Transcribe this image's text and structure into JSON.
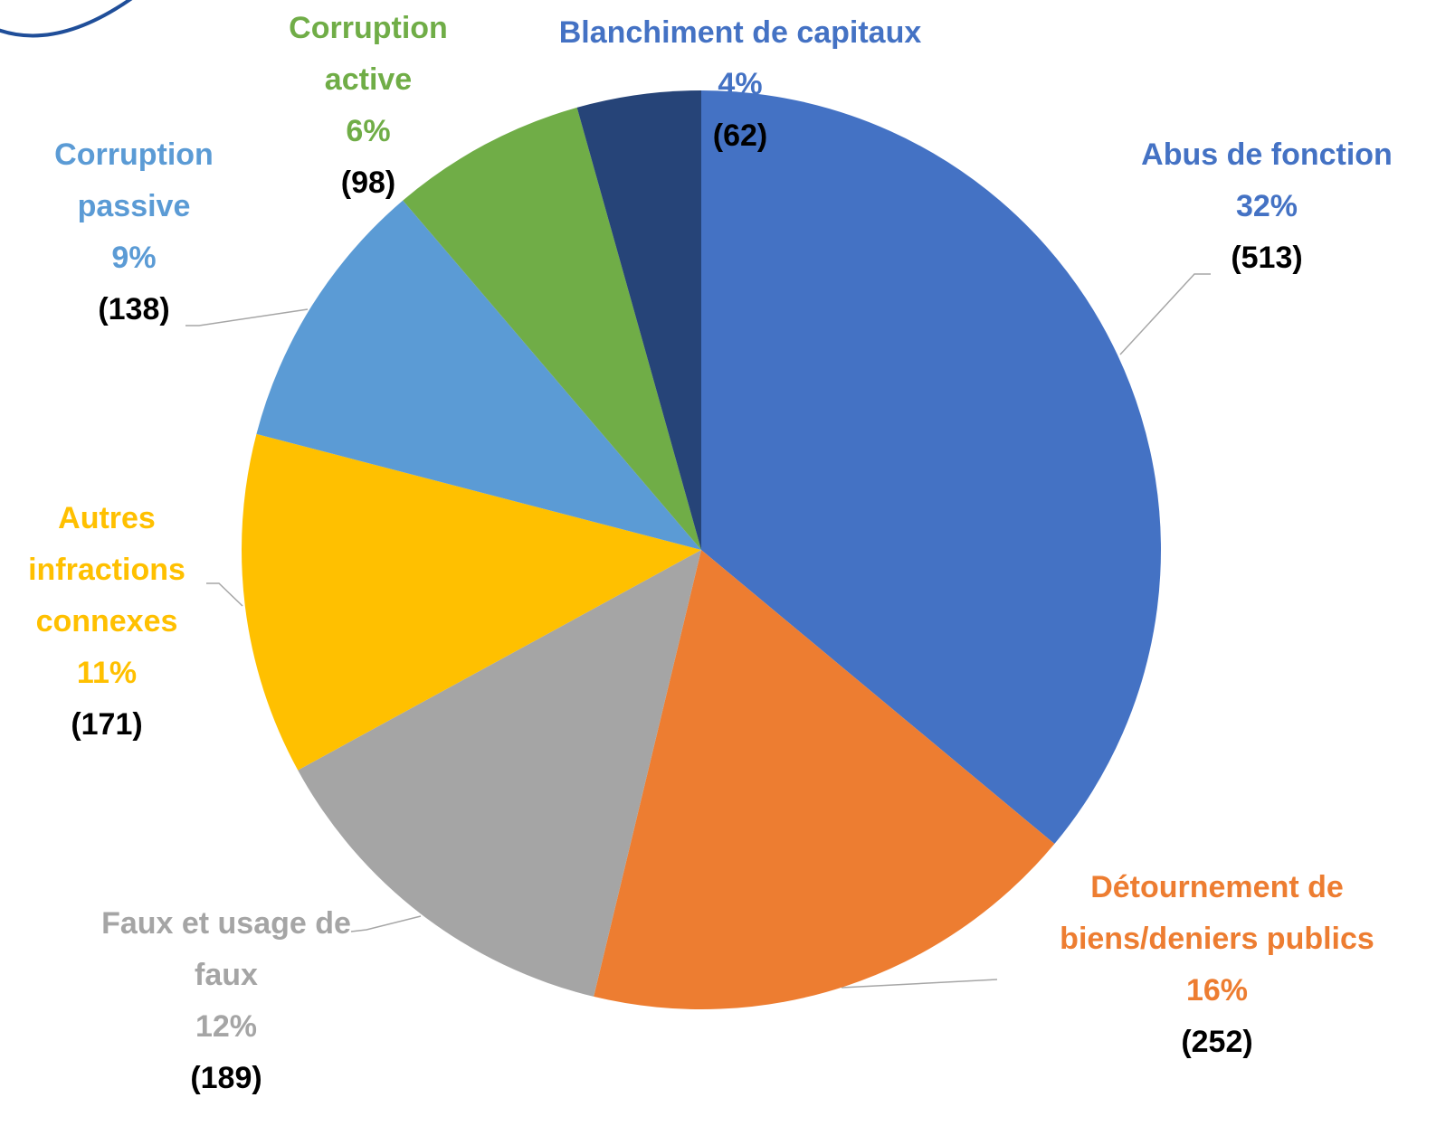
{
  "chart_data": {
    "type": "pie",
    "categories": [
      "Abus de fonction",
      "Détournement de biens/deniers publics",
      "Faux et usage de faux",
      "Autres infractions connexes",
      "Corruption passive",
      "Corruption active",
      "Blanchiment de capitaux"
    ],
    "values": [
      513,
      252,
      189,
      171,
      138,
      98,
      62
    ],
    "value_labels": [
      "(513)",
      "(252)",
      "(189)",
      "(171)",
      "(138)",
      "(98)",
      "(62)"
    ],
    "percent_labels": [
      "32%",
      "16%",
      "12%",
      "11%",
      "9%",
      "6%",
      "4%"
    ],
    "colors": [
      "#4472c4",
      "#ed7d31",
      "#a5a5a5",
      "#ffc000",
      "#5b9bd5",
      "#70ad47",
      "#264478"
    ],
    "label_colors": [
      "#4472c4",
      "#ed7d31",
      "#a5a5a5",
      "#ffc000",
      "#5b9bd5",
      "#70ad47",
      "#4472c4"
    ]
  }
}
